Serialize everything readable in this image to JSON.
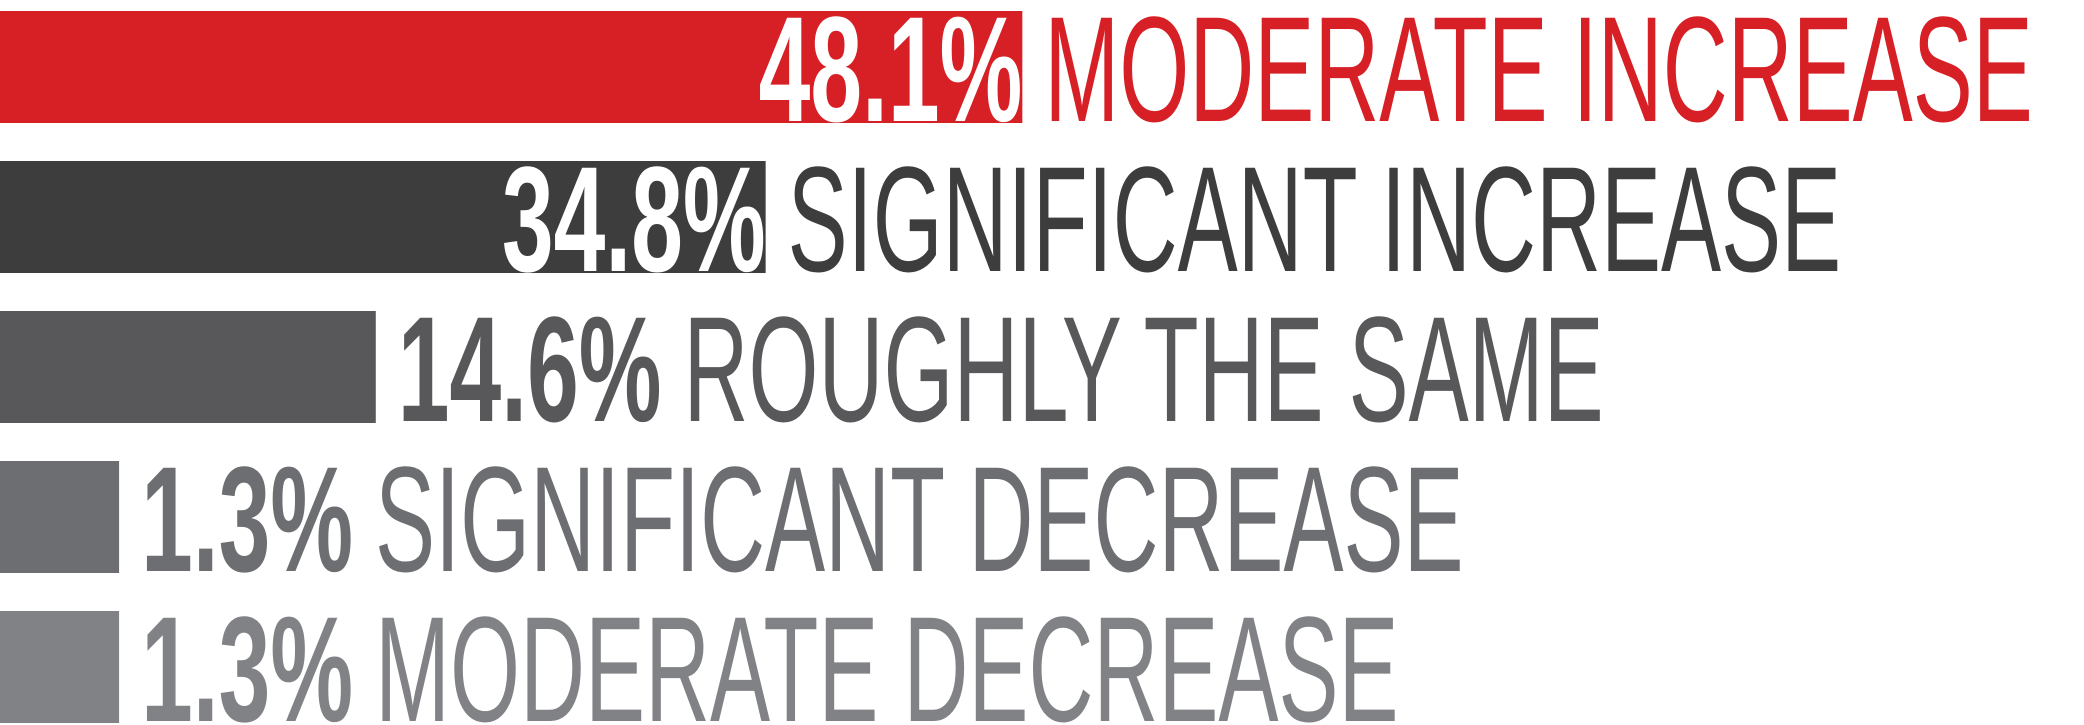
{
  "chart_data": {
    "type": "bar",
    "categories": [
      "MODERATE INCREASE",
      "SIGNIFICANT INCREASE",
      "ROUGHLY THE SAME",
      "SIGNIFICANT DECREASE",
      "MODERATE DECREASE"
    ],
    "values": [
      48.1,
      34.8,
      14.6,
      1.3,
      1.3
    ],
    "value_labels": [
      "48.1%",
      "34.8%",
      "14.6%",
      "1.3%",
      "1.3%"
    ],
    "colors": [
      "#d71f26",
      "#3d3d3d",
      "#58585a",
      "#6d6e71",
      "#818285"
    ]
  }
}
